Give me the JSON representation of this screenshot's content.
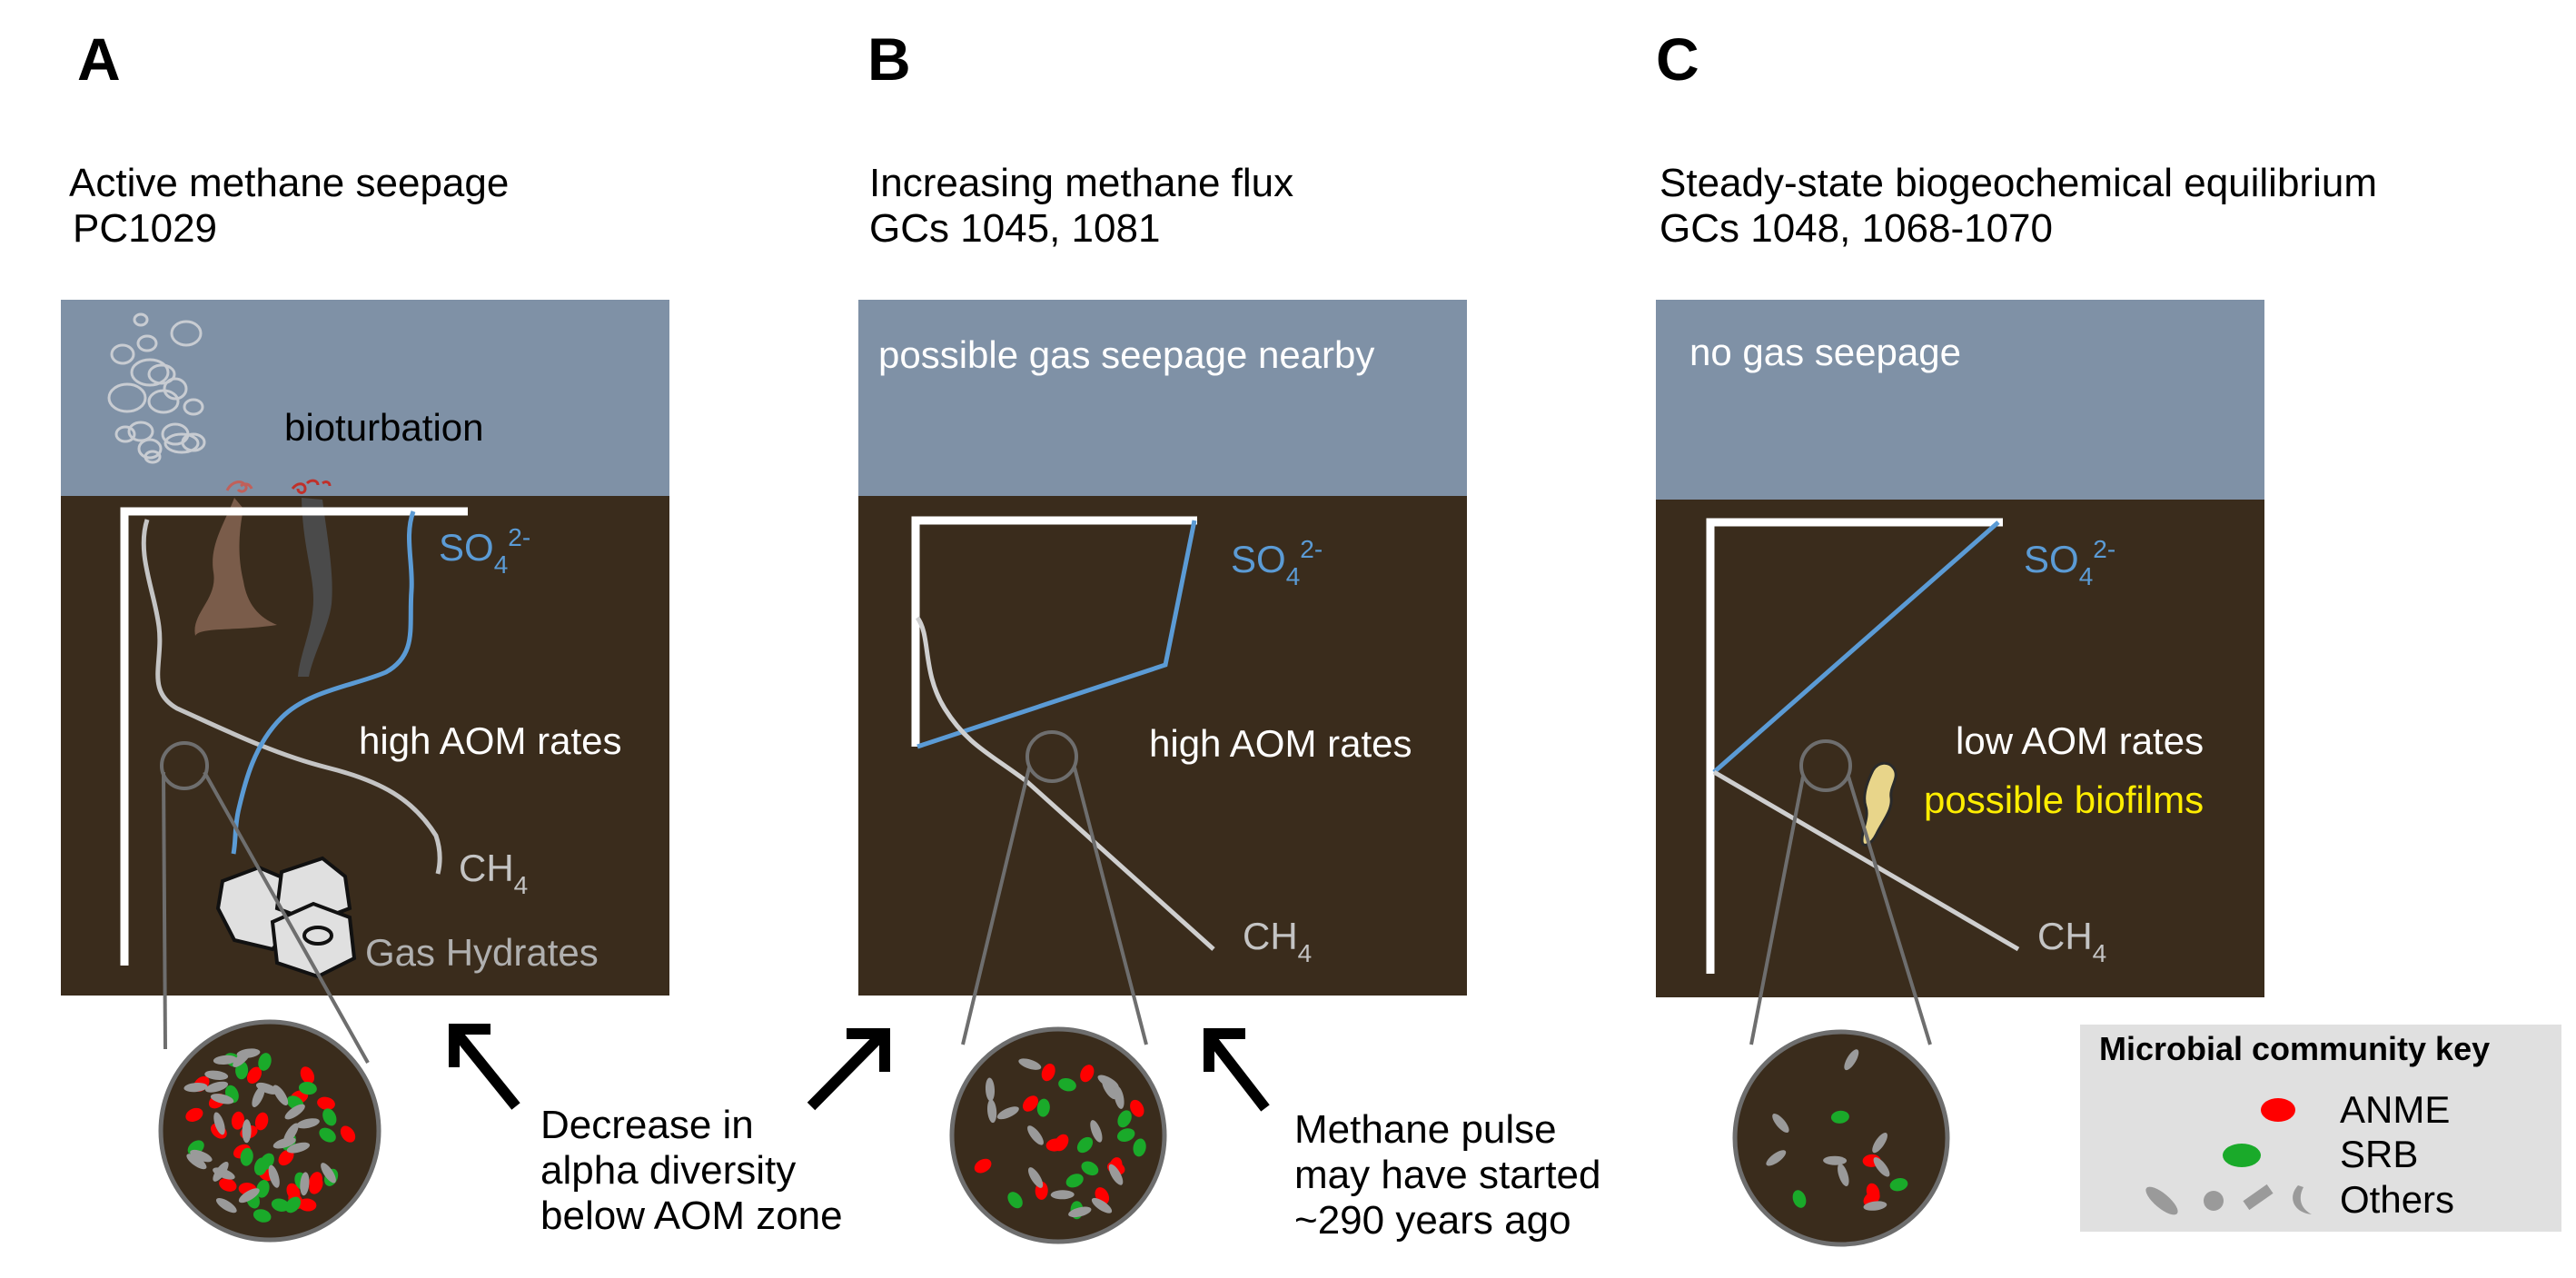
{
  "panels": {
    "a": {
      "letter": "A",
      "title_line1": "Active methane seepage",
      "title_line2": "PC1029",
      "water_label": "bioturbation",
      "so4_label": "SO",
      "so4_sub": "4",
      "so4_sup": "2-",
      "aom_label": "high AOM rates",
      "ch4_label": "CH",
      "ch4_sub": "4",
      "hydrate_label": "Gas Hydrates"
    },
    "b": {
      "letter": "B",
      "title_line1": "Increasing methane flux",
      "title_line2": "GCs 1045, 1081",
      "water_label": "possible gas seepage nearby",
      "so4_label": "SO",
      "so4_sub": "4",
      "so4_sup": "2-",
      "aom_label": "high AOM rates",
      "ch4_label": "CH",
      "ch4_sub": "4"
    },
    "c": {
      "letter": "C",
      "title_line1": "Steady-state biogeochemical equilibrium",
      "title_line2": "GCs 1048, 1068-1070",
      "water_label": "no gas seepage",
      "so4_label": "SO",
      "so4_sub": "4",
      "so4_sup": "2-",
      "aom_label": "low AOM rates",
      "biofilm_label": "possible biofilms",
      "ch4_label": "CH",
      "ch4_sub": "4"
    }
  },
  "annotations": {
    "diversity": [
      "Decrease in",
      "alpha diversity",
      "below AOM zone"
    ],
    "pulse": [
      "Methane pulse",
      "may have started",
      "~290 years ago"
    ]
  },
  "key": {
    "title": "Microbial community key",
    "anme": "ANME",
    "srb": "SRB",
    "others": "Others"
  },
  "colors": {
    "water": "#7f91a6",
    "sediment": "#3a2c1c",
    "sulfate": "#5b9bd5",
    "methane": "#cfcfcf",
    "anme": "#ff0000",
    "srb": "#1aaa2a",
    "others": "#9a9a9a",
    "biofilm": "#e8d58a",
    "biofilm_label": "#ffee00"
  }
}
